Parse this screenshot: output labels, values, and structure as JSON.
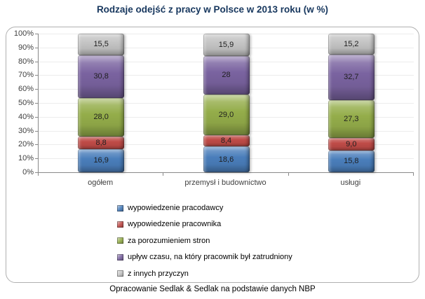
{
  "title": "Rodzaje odejść z pracy w Polsce w 2013 roku (w %)",
  "caption": "Opracowanie Sedlak & Sedlak na podstawie danych NBP",
  "chart_data": {
    "type": "bar",
    "stacked": true,
    "percent_stacked": true,
    "title": "Rodzaje odejść z pracy w Polsce w 2013 roku (w %)",
    "categories": [
      "ogółem",
      "przemysł i budownictwo",
      "usługi"
    ],
    "series": [
      {
        "name": "wypowiedzenie pracodawcy",
        "color": "#4a7ebb",
        "values": [
          16.9,
          18.6,
          15.8
        ],
        "labels": [
          "16,9",
          "18,6",
          "15,8"
        ]
      },
      {
        "name": "wypowiedzenie pracownika",
        "color": "#bf4b47",
        "values": [
          8.8,
          8.4,
          9.0
        ],
        "labels": [
          "8,8",
          "8,4",
          "9,0"
        ]
      },
      {
        "name": "za porozumieniem stron",
        "color": "#94ad4a",
        "values": [
          28.0,
          29.0,
          27.3
        ],
        "labels": [
          "28,0",
          "29,0",
          "27,3"
        ]
      },
      {
        "name": "upływ czasu, na który pracownik był zatrudniony",
        "color": "#7a63a0",
        "values": [
          30.8,
          28,
          32.7
        ],
        "labels": [
          "30,8",
          "28",
          "32,7"
        ]
      },
      {
        "name": "z innych przyczyn",
        "color": "#c4c4c4",
        "values": [
          15.5,
          15.9,
          15.2
        ],
        "labels": [
          "15,5",
          "15,9",
          "15,2"
        ]
      }
    ],
    "y_ticks": [
      "0%",
      "10%",
      "20%",
      "30%",
      "40%",
      "50%",
      "60%",
      "70%",
      "80%",
      "90%",
      "100%"
    ],
    "ylim": [
      0,
      100
    ],
    "grid": true,
    "legend_position": "bottom-left"
  }
}
